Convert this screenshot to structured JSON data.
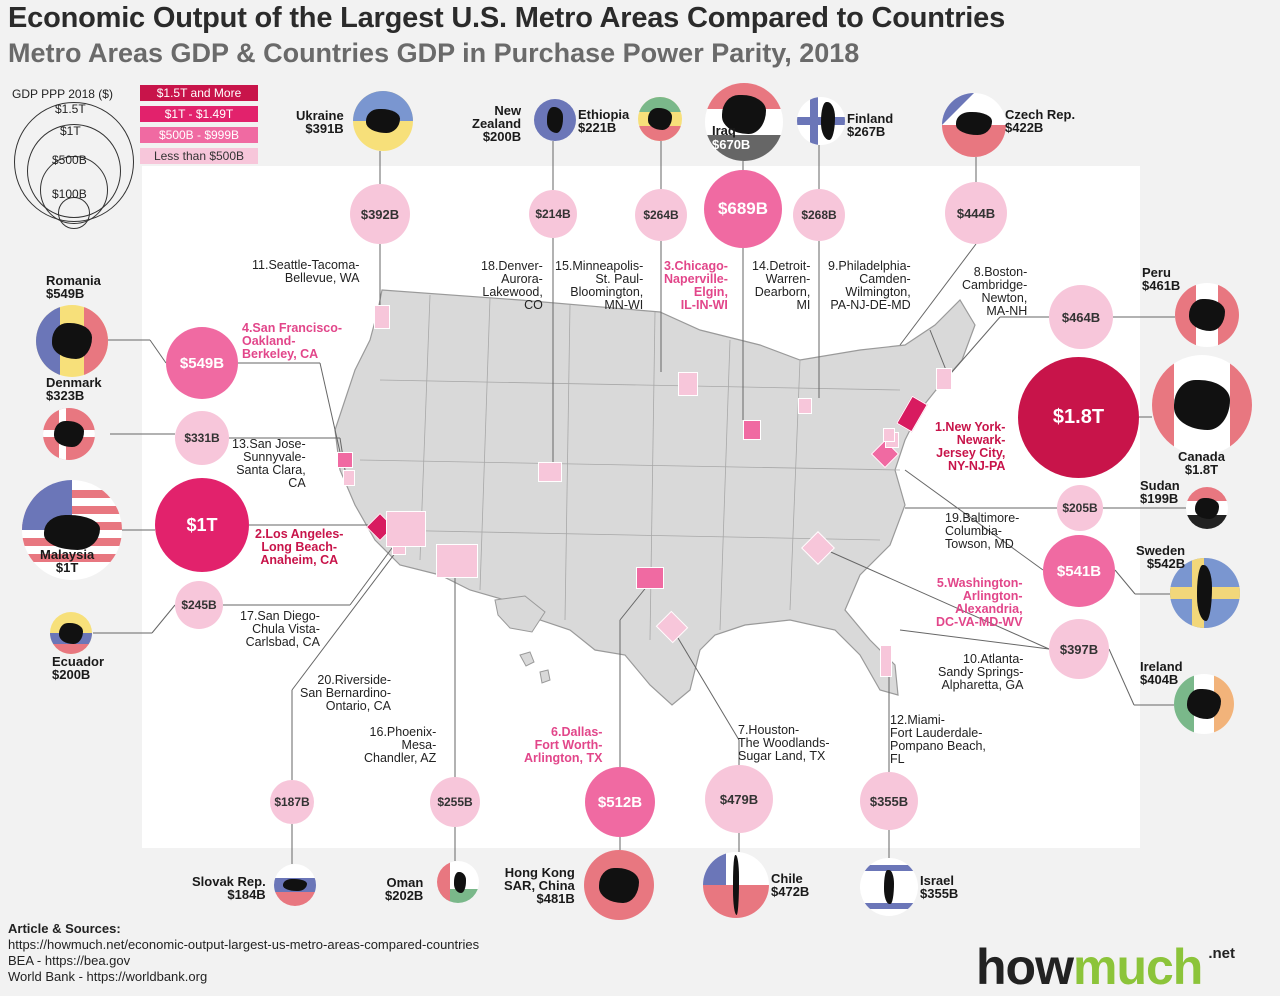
{
  "header": {
    "title": "Economic Output of the Largest U.S. Metro Areas Compared to Countries",
    "subtitle": "Metro Areas GDP & Countries GDP in Purchase Power Parity, 2018"
  },
  "legend": {
    "title": "GDP PPP 2018 ($)",
    "sizes": [
      "$1.5T",
      "$1T",
      "$500B",
      "$100B"
    ],
    "keys": [
      {
        "label": "$1.5T and More",
        "color": "#c8144a"
      },
      {
        "label": "$1T - $1.49T",
        "color": "#e2226c"
      },
      {
        "label": "$500B - $999B",
        "color": "#f06aa2"
      },
      {
        "label": "Less than $500B",
        "color": "#f7c6da"
      }
    ]
  },
  "colors": {
    "tier1": "#c8144a",
    "tier2": "#e2226c",
    "tier3": "#f06aa2",
    "tier4": "#f7c6da",
    "brand_green": "#8cc43a"
  },
  "metros": [
    {
      "rank_label": "1.New York-\nNewark-\nJersey City,\nNY-NJ-PA",
      "value": "$1.8T",
      "tier": 1
    },
    {
      "rank_label": "2.Los Angeles-\nLong Beach-\nAnaheim, CA",
      "value": "$1T",
      "tier": 2
    },
    {
      "rank_label": "3.Chicago-\nNaperville-\nElgin,\nIL-IN-WI",
      "value": "$689B",
      "tier": 3
    },
    {
      "rank_label": "4.San Francisco-\nOakland-\nBerkeley, CA",
      "value": "$549B",
      "tier": 3
    },
    {
      "rank_label": "5.Washington-\nArlington-\nAlexandria,\nDC-VA-MD-WV",
      "value": "$541B",
      "tier": 3
    },
    {
      "rank_label": "6.Dallas-\nFort Worth-\nArlington, TX",
      "value": "$512B",
      "tier": 3
    },
    {
      "rank_label": "7.Houston-\nThe Woodlands-\nSugar Land, TX",
      "value": "$479B",
      "tier": 4
    },
    {
      "rank_label": "8.Boston-\nCambridge-\nNewton,\nMA-NH",
      "value": "$464B",
      "tier": 4
    },
    {
      "rank_label": "9.Philadelphia-\nCamden-\nWilmington,\nPA-NJ-DE-MD",
      "value": "$444B",
      "tier": 4
    },
    {
      "rank_label": "10.Atlanta-\nSandy Springs-\nAlpharetta, GA",
      "value": "$397B",
      "tier": 4
    },
    {
      "rank_label": "11.Seattle-Tacoma-\nBellevue, WA",
      "value": "$392B",
      "tier": 4
    },
    {
      "rank_label": "12.Miami-\nFort Lauderdale-\nPompano Beach,\nFL",
      "value": "$355B",
      "tier": 4
    },
    {
      "rank_label": "13.San Jose-\nSunnyvale-\nSanta Clara,\nCA",
      "value": "$331B",
      "tier": 4
    },
    {
      "rank_label": "14.Detroit-\nWarren-\nDearborn,\nMI",
      "value": "$268B",
      "tier": 4
    },
    {
      "rank_label": "15.Minneapolis-\nSt. Paul-\nBloomington,\nMN-WI",
      "value": "$264B",
      "tier": 4
    },
    {
      "rank_label": "16.Phoenix-\nMesa-\nChandler, AZ",
      "value": "$255B",
      "tier": 4
    },
    {
      "rank_label": "17.San Diego-\nChula Vista-\nCarlsbad, CA",
      "value": "$245B",
      "tier": 4
    },
    {
      "rank_label": "18.Denver-\nAurora-\nLakewood,\nCO",
      "value": "$214B",
      "tier": 4
    },
    {
      "rank_label": "19.Baltimore-\nColumbia-\nTowson, MD",
      "value": "$205B",
      "tier": 4
    },
    {
      "rank_label": "20.Riverside-\nSan Bernardino-\nOntario, CA",
      "value": "$187B",
      "tier": 4
    }
  ],
  "countries": [
    {
      "name": "Canada",
      "value": "$1.8T",
      "flag": "canada-flag-icon"
    },
    {
      "name": "Malaysia",
      "value": "$1T",
      "flag": "malaysia-flag-icon"
    },
    {
      "name": "Iraq",
      "value": "$670B",
      "flag": "iraq-flag-icon"
    },
    {
      "name": "Romania",
      "value": "$549B",
      "flag": "romania-flag-icon"
    },
    {
      "name": "Sweden",
      "value": "$542B",
      "flag": "sweden-flag-icon"
    },
    {
      "name": "Hong Kong\nSAR, China",
      "value": "$481B",
      "flag": "hong-kong-flag-icon"
    },
    {
      "name": "Chile",
      "value": "$472B",
      "flag": "chile-flag-icon"
    },
    {
      "name": "Peru",
      "value": "$461B",
      "flag": "peru-flag-icon"
    },
    {
      "name": "Czech Rep.",
      "value": "$422B",
      "flag": "czech-flag-icon"
    },
    {
      "name": "Ireland",
      "value": "$404B",
      "flag": "ireland-flag-icon"
    },
    {
      "name": "Ukraine",
      "value": "$391B",
      "flag": "ukraine-flag-icon"
    },
    {
      "name": "Israel",
      "value": "$355B",
      "flag": "israel-flag-icon"
    },
    {
      "name": "Denmark",
      "value": "$323B",
      "flag": "denmark-flag-icon"
    },
    {
      "name": "Finland",
      "value": "$267B",
      "flag": "finland-flag-icon"
    },
    {
      "name": "Ethiopia",
      "value": "$221B",
      "flag": "ethiopia-flag-icon"
    },
    {
      "name": "Oman",
      "value": "$202B",
      "flag": "oman-flag-icon"
    },
    {
      "name": "New\nZealand",
      "value": "$200B",
      "flag": "new-zealand-flag-icon"
    },
    {
      "name": "Ecuador",
      "value": "$200B",
      "flag": "ecuador-flag-icon"
    },
    {
      "name": "Sudan",
      "value": "$199B",
      "flag": "sudan-flag-icon"
    },
    {
      "name": "Slovak Rep.",
      "value": "$184B",
      "flag": "slovakia-flag-icon"
    }
  ],
  "sources": {
    "heading": "Article & Sources:",
    "lines": [
      "https://howmuch.net/economic-output-largest-us-metro-areas-compared-countries",
      "BEA - https://bea.gov",
      "World Bank - https://worldbank.org"
    ]
  },
  "brand": {
    "part1": "how",
    "part2": "much",
    "suffix": ".net"
  }
}
